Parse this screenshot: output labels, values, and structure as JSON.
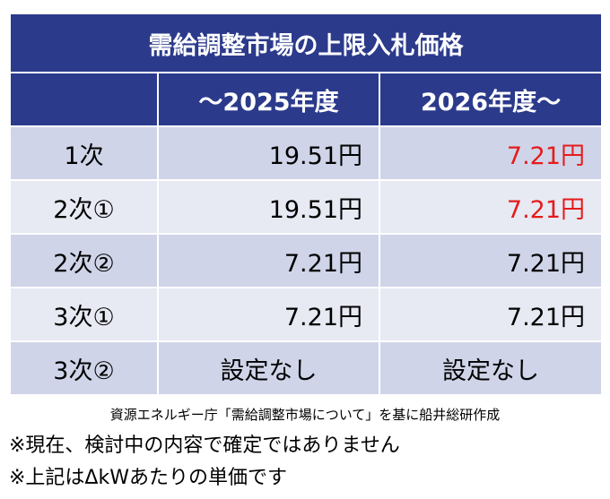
{
  "table": {
    "title": "需給調整市場の上限入札価格",
    "columns": [
      "",
      "～2025年度",
      "2026年度～"
    ],
    "rows": [
      {
        "label": "1次",
        "v2025": "19.51円",
        "v2026": "7.21円"
      },
      {
        "label": "2次①",
        "v2025": "19.51円",
        "v2026": "7.21円"
      },
      {
        "label": "2次②",
        "v2025": "7.21円",
        "v2026": "7.21円"
      },
      {
        "label": "3次①",
        "v2025": "7.21円",
        "v2026": "7.21円"
      },
      {
        "label": "3次②",
        "v2025": "設定なし",
        "v2026": "設定なし"
      }
    ],
    "highlight_color": "#e51b1b",
    "header_color": "#2b3a8b"
  },
  "notes": {
    "source": "資源エネルギー庁「需給調整市場について」を基に船井総研作成",
    "note1": "※現在、検討中の内容で確定ではありません",
    "note2": "※上記はΔkWあたりの単価です"
  }
}
